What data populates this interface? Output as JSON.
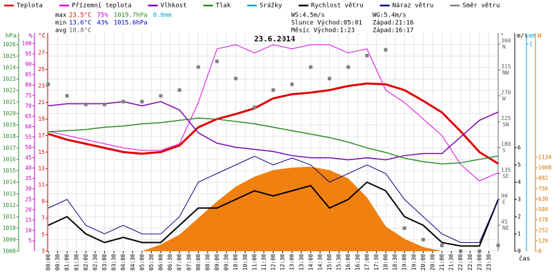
{
  "chart_data": {
    "type": "line",
    "title": "23.6.2014",
    "x_label": "čas",
    "x": [
      0,
      1,
      2,
      3,
      4,
      5,
      6,
      7,
      8,
      9,
      10,
      11,
      12,
      13,
      14,
      15,
      16,
      17,
      18,
      19,
      20,
      21,
      22,
      23,
      24
    ],
    "xlim": [
      0,
      24
    ],
    "xticks": [
      {
        "value": 0,
        "label": "00:00"
      },
      {
        "value": 0.5,
        "label": "00:30"
      },
      {
        "value": 1,
        "label": "01:00"
      },
      {
        "value": 1.5,
        "label": "01:30"
      },
      {
        "value": 2,
        "label": "02:00"
      },
      {
        "value": 2.5,
        "label": "02:30"
      },
      {
        "value": 3,
        "label": "03:00"
      },
      {
        "value": 3.5,
        "label": "03:30"
      },
      {
        "value": 4,
        "label": "04:00"
      },
      {
        "value": 4.5,
        "label": "04:30"
      },
      {
        "value": 5,
        "label": "05:00"
      },
      {
        "value": 5.5,
        "label": "05:30"
      },
      {
        "value": 6,
        "label": "06:00"
      },
      {
        "value": 6.5,
        "label": "06:30"
      },
      {
        "value": 7,
        "label": "07:00"
      },
      {
        "value": 7.5,
        "label": "07:30"
      },
      {
        "value": 8,
        "label": "08:00"
      },
      {
        "value": 8.5,
        "label": "08:30"
      },
      {
        "value": 9,
        "label": "09:00"
      },
      {
        "value": 9.5,
        "label": "09:30"
      },
      {
        "value": 10,
        "label": "10:00"
      },
      {
        "value": 10.5,
        "label": "10:30"
      },
      {
        "value": 11,
        "label": "11:00"
      },
      {
        "value": 11.5,
        "label": "11:30"
      },
      {
        "value": 12,
        "label": "12:00"
      },
      {
        "value": 12.5,
        "label": "12:30"
      },
      {
        "value": 13,
        "label": "13:00"
      },
      {
        "value": 13.5,
        "label": "13:30"
      },
      {
        "value": 14,
        "label": "14:00"
      },
      {
        "value": 14.5,
        "label": "14:30"
      },
      {
        "value": 15,
        "label": "15:00"
      },
      {
        "value": 15.5,
        "label": "15:30"
      },
      {
        "value": 16,
        "label": "16:00"
      },
      {
        "value": 16.5,
        "label": "16:30"
      },
      {
        "value": 17,
        "label": "17:00"
      },
      {
        "value": 17.5,
        "label": "17:30"
      },
      {
        "value": 18,
        "label": "18:00"
      },
      {
        "value": 18.5,
        "label": "18:30"
      },
      {
        "value": 19,
        "label": "19:00"
      },
      {
        "value": 19.5,
        "label": "19:30"
      },
      {
        "value": 20,
        "label": "20:00"
      },
      {
        "value": 20.5,
        "label": "20:30"
      },
      {
        "value": 21,
        "label": "21:00"
      },
      {
        "value": 21.5,
        "label": "21:30"
      },
      {
        "value": 22,
        "label": "22:00"
      },
      {
        "value": 22.5,
        "label": "22:30"
      },
      {
        "value": 23,
        "label": "23:00"
      },
      {
        "value": 23.5,
        "label": "23:30"
      }
    ],
    "grid": true,
    "axes": [
      {
        "unit": "hPa",
        "color": "#2a8a2a",
        "ylim": [
          1008,
          1027
        ],
        "yticks": [
          1008,
          1009,
          1010,
          1011,
          1012,
          1013,
          1014,
          1015,
          1016,
          1017,
          1018,
          1019,
          1020,
          1021,
          1022,
          1023,
          1024,
          1025,
          1026
        ]
      },
      {
        "unit": "%",
        "color": "#c000c0",
        "ylim": [
          0,
          105
        ],
        "yticks": [
          5,
          10,
          15,
          20,
          25,
          30,
          35,
          40,
          45,
          50,
          55,
          60,
          65,
          70,
          75,
          80,
          85,
          90,
          95,
          100
        ]
      },
      {
        "unit": "°C",
        "color": "#e00000",
        "ylim": [
          3,
          29.4
        ],
        "yticks": [
          3,
          5,
          7,
          9,
          11,
          13,
          15,
          17,
          19,
          21,
          23,
          25,
          27
        ]
      },
      {
        "unit": "°",
        "color": "#606060",
        "ylim": [
          0,
          379
        ],
        "yticks": [
          {
            "value": 45,
            "label": "45",
            "dir": "NE"
          },
          {
            "value": 90,
            "label": "90",
            "dir": "E"
          },
          {
            "value": 135,
            "label": "135",
            "dir": "SE"
          },
          {
            "value": 180,
            "label": "180",
            "dir": "S"
          },
          {
            "value": 225,
            "label": "225",
            "dir": "SW"
          },
          {
            "value": 270,
            "label": "270",
            "dir": "W"
          },
          {
            "value": 315,
            "label": "315",
            "dir": "NW"
          },
          {
            "value": 360,
            "label": "360",
            "dir": "N"
          }
        ]
      },
      {
        "unit": "m/s",
        "color": "#000000",
        "ylim": [
          0,
          12.64
        ],
        "yticks": [
          0,
          1,
          2,
          3,
          4,
          5,
          6
        ]
      },
      {
        "unit": "mm",
        "color": "#00a8d0",
        "ylim": [
          0,
          1.053
        ],
        "yticks": [
          1
        ]
      },
      {
        "unit": "W",
        "color": "#e07000",
        "ylim": [
          0,
          2635
        ],
        "yticks": [
          0,
          126,
          252,
          378,
          504,
          630,
          756,
          882,
          1008,
          1134
        ]
      }
    ],
    "radiation": {
      "color": "#f08010",
      "axis": "W",
      "values": [
        0,
        0,
        0,
        0,
        0,
        0,
        80,
        200,
        400,
        600,
        780,
        900,
        980,
        1010,
        1020,
        980,
        880,
        650,
        300,
        150,
        50,
        0,
        0,
        0,
        0
      ]
    },
    "series": [
      {
        "name": "Teplota",
        "color": "#e00000",
        "axis": "°C",
        "width": 3,
        "values": [
          17.2,
          16.5,
          16.0,
          15.5,
          15.0,
          14.8,
          15.0,
          15.8,
          18.0,
          19.0,
          19.6,
          20.3,
          21.5,
          22.0,
          22.2,
          22.5,
          23.0,
          23.3,
          23.2,
          22.5,
          21.2,
          19.8,
          17.5,
          15.0,
          13.6
        ]
      },
      {
        "name": "Přízemní teplota",
        "color": "#e000e0",
        "axis": "°C",
        "width": 1,
        "values": [
          17.5,
          17.0,
          16.5,
          16.0,
          15.5,
          15.2,
          15.2,
          16.0,
          21.0,
          27.5,
          28.0,
          27.0,
          28.0,
          27.5,
          28.0,
          28.0,
          27.0,
          27.5,
          22.5,
          21.0,
          19.0,
          17.0,
          13.5,
          11.5,
          12.5
        ]
      },
      {
        "name": "Vlhkost",
        "color": "#7a00b0",
        "axis": "%",
        "width": 1.5,
        "values": [
          70,
          71,
          71,
          71,
          72,
          70,
          72,
          68,
          57,
          52,
          50,
          49,
          48,
          46,
          45,
          45,
          44,
          45,
          44,
          46,
          47,
          47,
          55,
          63,
          67
        ]
      },
      {
        "name": "Tlak",
        "color": "#2a8a2a",
        "axis": "hPa",
        "width": 1.5,
        "values": [
          1018.4,
          1018.5,
          1018.6,
          1018.8,
          1018.9,
          1019.1,
          1019.2,
          1019.4,
          1019.6,
          1019.5,
          1019.3,
          1019.1,
          1018.8,
          1018.5,
          1018.2,
          1017.9,
          1017.5,
          1017.0,
          1016.6,
          1016.1,
          1015.8,
          1015.6,
          1015.7,
          1016.0,
          1016.3
        ]
      },
      {
        "name": "Srážky",
        "color": "#00a8d0",
        "axis": "mm"
      },
      {
        "name": "Rychlost větru",
        "color": "#000000",
        "axis": "m/s",
        "width": 2,
        "values": [
          1.5,
          2.0,
          1.0,
          0.5,
          0.8,
          0.5,
          0.5,
          1.5,
          2.5,
          2.5,
          3.0,
          3.5,
          3.2,
          3.5,
          3.8,
          2.5,
          3.0,
          4.0,
          3.5,
          2.0,
          1.5,
          0.5,
          0.3,
          0.3,
          3.0
        ]
      },
      {
        "name": "Náraz větru",
        "color": "#000080",
        "axis": "m/s",
        "width": 1,
        "values": [
          2.5,
          3.0,
          1.5,
          1.0,
          1.5,
          1.0,
          1.0,
          2.0,
          4.0,
          4.5,
          5.0,
          5.5,
          5.0,
          5.4,
          5.0,
          4.0,
          4.5,
          5.0,
          4.5,
          3.0,
          2.0,
          1.0,
          0.5,
          0.5,
          3.0
        ]
      },
      {
        "name": "Směr větru",
        "color": "#808080",
        "axis": "°",
        "style": "squares",
        "values": [
          290,
          270,
          255,
          255,
          260,
          260,
          270,
          280,
          320,
          330,
          300,
          250,
          280,
          290,
          320,
          300,
          320,
          340,
          350,
          40,
          20,
          10,
          0,
          0,
          10
        ]
      }
    ],
    "stats": [
      {
        "label": "max",
        "items": [
          {
            "text": "23.5°C",
            "color": "#e00000"
          },
          {
            "text": "75%",
            "color": "#c000c0"
          },
          {
            "text": "1019.7hPa",
            "color": "#2a8a2a"
          },
          {
            "text": "0.0mm",
            "color": "#00a8d0"
          }
        ]
      },
      {
        "label": "min",
        "items": [
          {
            "text": "13.6°C",
            "color": "#0000c0"
          },
          {
            "text": "43%",
            "color": "#0000c0"
          },
          {
            "text": "1015.6hPa",
            "color": "#0000c0"
          }
        ]
      },
      {
        "label": "avg",
        "items": [
          {
            "text": "18.8°C",
            "color": "#606060"
          }
        ]
      }
    ],
    "info": [
      [
        "WS:4.5m/s",
        "WG:5.4m/s"
      ],
      [
        "Slunce Východ:05:01",
        "Západ:21:16"
      ],
      [
        "Měsíc Východ:1:23",
        "Západ:16:17"
      ]
    ]
  }
}
